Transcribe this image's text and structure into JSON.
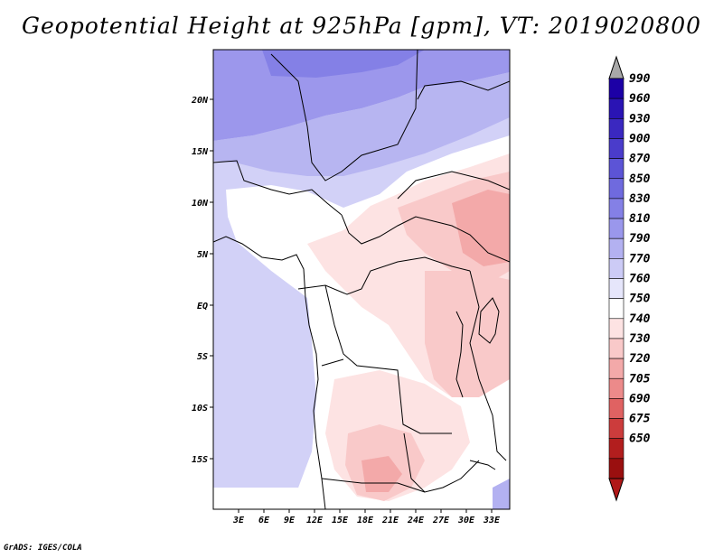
{
  "title": "Geopotential Height at 925hPa [gpm], VT: 2019020800",
  "footer": "GrADS: IGES/COLA",
  "map": {
    "lon_ticks": [
      "3E",
      "6E",
      "9E",
      "12E",
      "15E",
      "18E",
      "21E",
      "24E",
      "27E",
      "30E",
      "33E"
    ],
    "lat_ticks": [
      "20N",
      "15N",
      "10N",
      "5N",
      "EQ",
      "5S",
      "10S",
      "15S"
    ]
  },
  "colorbar": {
    "labels": [
      "990",
      "960",
      "930",
      "900",
      "870",
      "850",
      "830",
      "810",
      "790",
      "770",
      "760",
      "750",
      "740",
      "730",
      "720",
      "705",
      "690",
      "675",
      "650"
    ],
    "colors": [
      "#1c00a6",
      "#2a14b4",
      "#3a28c0",
      "#4a3ccb",
      "#5c54d6",
      "#6f6ade",
      "#8480e6",
      "#9a97ec",
      "#b3b1f1",
      "#cccbf6",
      "#e6e6fb",
      "#ffffff",
      "#fde3e3",
      "#f9c9c9",
      "#f3a9a9",
      "#ec8a8a",
      "#e06262",
      "#cc3c3c",
      "#b21e1e",
      "#9a0f0f"
    ],
    "top_arrow_color": "#a8a8a8",
    "bottom_arrow_color": "#b01818"
  }
}
